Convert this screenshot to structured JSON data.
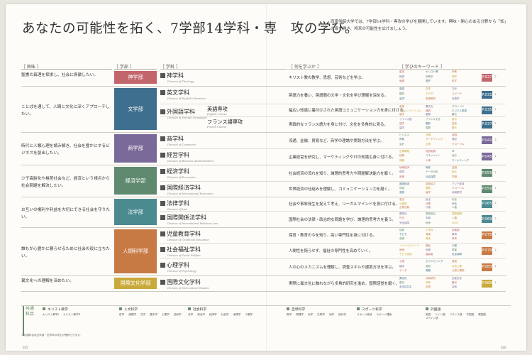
{
  "title": "あなたの可能性を拓く、7学部14学科・専　攻の学び。",
  "intro": "西南学院大学では、7学部14学科・専攻の学びを展開しています。興味・関心のある分野から「知」の扉を開き、将来の可能性を広げましょう。",
  "headers": {
    "interest": "［ 興味 ］",
    "faculty": "［ 学部 ］",
    "department": "［ 学科 ］",
    "what": "［ 何を学ぶか ］",
    "keywords": "［ 学びのキーワード ］"
  },
  "rows": [
    {
      "interest": "聖書の真理を探求し、社会に貢献したい。",
      "faculty": "神学部",
      "color": "#c2666b",
      "dept": "神学科",
      "dept_en": "Division of Theology",
      "desc": "キリスト教の教学、思想、芸術などを学ぶ。",
      "page": "P.027",
      "kw": [
        "聖書",
        "キリスト教",
        "宗教",
        "牧師",
        "宗教学",
        "神学",
        "倫理",
        "歴史",
        "哲学"
      ]
    },
    {
      "interest": "ことばを通して、人間と文化に深くアプローチしたい。",
      "faculty": "文学部",
      "color": "#3f6f8e",
      "dept": "英文学科",
      "dept_en": "Division of English Literature",
      "desc": "英語力を養い、英語圏の文学・文化を学び理解を深める。",
      "page": "P.031",
      "kw": [
        "英語",
        "文学",
        "文化",
        "翻訳",
        "TOEIC",
        "スピーチ",
        "留学",
        "英語教育",
        "言語学"
      ]
    },
    {
      "faculty": "",
      "dept": "外国語学科",
      "dept_en": "Division of Foreign Languages",
      "major": "英語専攻",
      "major_en": "English Course",
      "desc": "幅広い知識に裏付けされた英語コミュニケーション力を身に付ける。",
      "page": "P.035",
      "kw": [
        "英語",
        "異文化",
        "グローバル",
        "コミュニケーション",
        "通訳",
        "ビジネス英語",
        "留学",
        "国際",
        "観光"
      ]
    },
    {
      "faculty": "",
      "major": "フランス語専攻",
      "major_en": "French Course",
      "desc": "実践的なフランス語力を身に付け、文化を多角的に見る。",
      "page": "P.037",
      "kw": [
        "フランス語",
        "フランス文化",
        "欧州",
        "語学",
        "翻訳",
        "芸術",
        "留学",
        "国際",
        "観光"
      ]
    },
    {
      "interest": "時代と人類心理を読み解き、社会を豊かにするビジネスを創出したい。",
      "faculty": "商学部",
      "color": "#7a6a9a",
      "dept": "商学科",
      "dept_en": "Division of Commerce",
      "desc": "流通、金融、貿易など、商学の理論や実践方法を学ぶ。",
      "page": "P.041",
      "kw": [
        "ビジネス",
        "流通",
        "金融",
        "貿易",
        "マーケティング",
        "簿記",
        "会計",
        "企業",
        "グローバル"
      ]
    },
    {
      "faculty": "",
      "dept": "経営学科",
      "dept_en": "Division of Business Administration",
      "desc": "企業経営を研究し、マーケティングやITの知識も身に付ける。",
      "page": "P.045",
      "kw": [
        "企業戦略",
        "経営組織",
        "IT",
        "起業",
        "マネジメント",
        "会計",
        "情報",
        "人事",
        "マーケティング"
      ]
    },
    {
      "interest": "少子高齢化や格差社会など、経済という視点から社会問題を解決したい。",
      "faculty": "経済学部",
      "color": "#5f8a6f",
      "dept": "経済学科",
      "dept_en": "Division of Economics",
      "desc": "社会経済の流れを知り、論理的思考力や問題解決能力を磨く。",
      "page": "P.055",
      "kw": [
        "地域経済",
        "財政",
        "金融",
        "環境",
        "データ分析",
        "統計",
        "政策",
        "社会保障",
        "労働"
      ]
    },
    {
      "faculty": "",
      "dept": "国際経済学科",
      "dept_en": "Division of International Economics",
      "desc": "世界経済の仕組みを理解し、コミュニケーション力を磨く。",
      "page": "P.059",
      "kw": [
        "国際経済",
        "国際協力",
        "アジア経済",
        "貿易",
        "開発",
        "グローバル",
        "英語",
        "留学",
        "地域研究"
      ]
    },
    {
      "interest": "お互いの権利や利益を大切にできる社会を守りたい。",
      "faculty": "法学部",
      "color": "#4b8a8f",
      "dept": "法律学科",
      "dept_en": "Division of Law",
      "desc": "社会や事象発生を捉えて考え、リーガルマインドを身に付ける。",
      "page": "P.065",
      "kw": [
        "憲法",
        "民法",
        "刑法",
        "公務員",
        "法曹",
        "司法",
        "企業法務",
        "行政",
        "人権"
      ]
    },
    {
      "faculty": "",
      "dept": "国際関係法学科",
      "dept_en": "Division of International Relations Law",
      "desc": "国際社会の法律・政治的な問題を学び、論理的思考力を養う。",
      "page": "P.069",
      "kw": [
        "国際法",
        "国際政治",
        "国際機関",
        "外交",
        "平和",
        "人権",
        "安全保障",
        "紛争",
        "NGO"
      ]
    },
    {
      "interest": "誰もが心豊かに暮らせるために社会の役に立ちたい。",
      "faculty": "人間科学部",
      "color": "#c87a45",
      "dept": "児童教育学科",
      "dept_en": "Division of Childhood Education",
      "desc": "保育・教育の今を知り、高い専門性を身に付ける。",
      "page": "P.075",
      "kw": [
        "保育",
        "小学校",
        "幼稚園",
        "子ども",
        "発達",
        "教育",
        "音楽",
        "美術",
        "体育"
      ]
    },
    {
      "faculty": "",
      "dept": "社会福祉学科",
      "dept_en": "Division of Social Welfare",
      "desc": "人間性を鈍らせず、福祉の専門性を高めていく。",
      "page": "P.079",
      "kw": [
        "ソーシャルワーク",
        "福祉",
        "介護",
        "医療",
        "地域",
        "障害",
        "子ども家庭",
        "高齢者",
        "社会保障"
      ]
    },
    {
      "faculty": "",
      "dept": "心理学科",
      "dept_en": "Division of Psychology",
      "desc": "人の心のメカニズムを理解し、調査スキルや援助方法を学ぶ。",
      "page": "P.083",
      "kw": [
        "心理",
        "カウンセリング",
        "発達",
        "臨床",
        "認知",
        "社会心理",
        "データ",
        "実験",
        "公認心理師"
      ]
    },
    {
      "interest": "異文化への理解を深めたい。",
      "faculty": "国際文化学部",
      "color": "#c9a93a",
      "dept": "国際文化学科",
      "dept_en": "Division of Intercultural Studies",
      "desc": "実際に異文化に触れながら多角的研究を進め、国際感覚を磨く。",
      "page": "P.089",
      "kw": [
        "異文化",
        "地域研究",
        "比較文化",
        "歴史",
        "宗教",
        "観光",
        "多文化共生",
        "言語",
        "芸術"
      ]
    }
  ],
  "common": {
    "label": "共通科目",
    "groups": [
      {
        "title": "キリスト教学",
        "items": [
          "キリスト教学Ⅰ",
          "キリスト教学Ⅱ"
        ]
      },
      {
        "title": "人文科学",
        "items": [
          "哲学",
          "倫理学",
          "文学",
          "歴史学",
          "心理学",
          "芸術学"
        ]
      },
      {
        "title": "社会科学",
        "items": [
          "法学",
          "政治学",
          "経済学",
          "社会学",
          "地理学",
          "人類学"
        ]
      },
      {
        "title": "自然科学",
        "items": [
          "数学",
          "物理学",
          "化学",
          "生物学",
          "地学",
          "統計学"
        ]
      },
      {
        "title": "スポーツ科学",
        "items": [
          "スポーツ実技",
          "スポーツ理論"
        ]
      },
      {
        "title": "外国語",
        "items": [
          "英語",
          "ドイツ語",
          "フランス語",
          "中国語",
          "韓国語",
          "スペイン語"
        ]
      }
    ],
    "footnote": "※共通科目は全学部・全学科の学生が履修できます。"
  },
  "footer": {
    "left": "025",
    "right": "026"
  }
}
